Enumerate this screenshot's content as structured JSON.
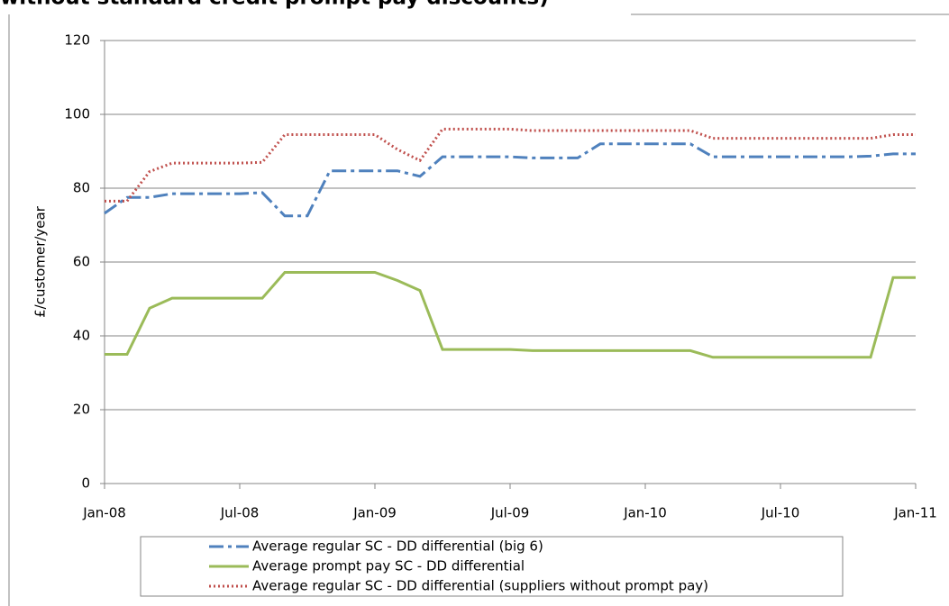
{
  "chart_data": {
    "type": "line",
    "title": "without standard credit prompt pay discounts)",
    "y_label": "£/customer/year",
    "categories": [
      "Jan-08",
      null,
      null,
      null,
      null,
      null,
      "Jul-08",
      null,
      null,
      null,
      null,
      null,
      "Jan-09",
      null,
      null,
      null,
      null,
      null,
      "Jul-09",
      null,
      null,
      null,
      null,
      null,
      "Jan-10",
      null,
      null,
      null,
      null,
      null,
      "Jul-10",
      null,
      null,
      null,
      null,
      null,
      "Jan-11"
    ],
    "series": [
      {
        "name": "Average regular SC - DD differential (big 6)",
        "color": "#4f81bd",
        "dash": "dash-dot",
        "values": [
          73.2,
          77.5,
          77.5,
          78.5,
          78.5,
          78.5,
          78.5,
          78.8,
          72.5,
          72.5,
          84.7,
          84.7,
          84.7,
          84.7,
          83.2,
          88.5,
          88.5,
          88.5,
          88.5,
          88.2,
          88.2,
          88.2,
          92,
          92,
          92,
          92,
          92,
          88.5,
          88.5,
          88.5,
          88.5,
          88.5,
          88.5,
          88.5,
          88.7,
          89.3,
          89.3
        ]
      },
      {
        "name": "Average prompt pay SC - DD differential",
        "color": "#9bbb59",
        "dash": "solid",
        "values": [
          35,
          35,
          47.5,
          50.2,
          50.2,
          50.2,
          50.2,
          50.2,
          57.2,
          57.2,
          57.2,
          57.2,
          57.2,
          55,
          52.3,
          36.3,
          36.3,
          36.3,
          36.3,
          36,
          36,
          36,
          36,
          36,
          36,
          36,
          36,
          34.2,
          34.2,
          34.2,
          34.2,
          34.2,
          34.2,
          34.2,
          34.2,
          55.8,
          55.8
        ]
      },
      {
        "name": "Average regular SC - DD differential (suppliers without prompt pay)",
        "color": "#c0504d",
        "dash": "dotted",
        "values": [
          76.5,
          76.5,
          84.5,
          86.8,
          86.8,
          86.8,
          86.8,
          87,
          94.5,
          94.5,
          94.5,
          94.5,
          94.5,
          90.5,
          87.5,
          96,
          96,
          96,
          96,
          95.6,
          95.6,
          95.6,
          95.6,
          95.6,
          95.6,
          95.6,
          95.6,
          93.5,
          93.5,
          93.5,
          93.5,
          93.5,
          93.5,
          93.5,
          93.5,
          94.5,
          94.5
        ]
      }
    ],
    "ylim": [
      0,
      120
    ],
    "yticks": [
      0,
      20,
      40,
      60,
      80,
      100,
      120
    ],
    "grid": true,
    "legend": "bottom"
  }
}
